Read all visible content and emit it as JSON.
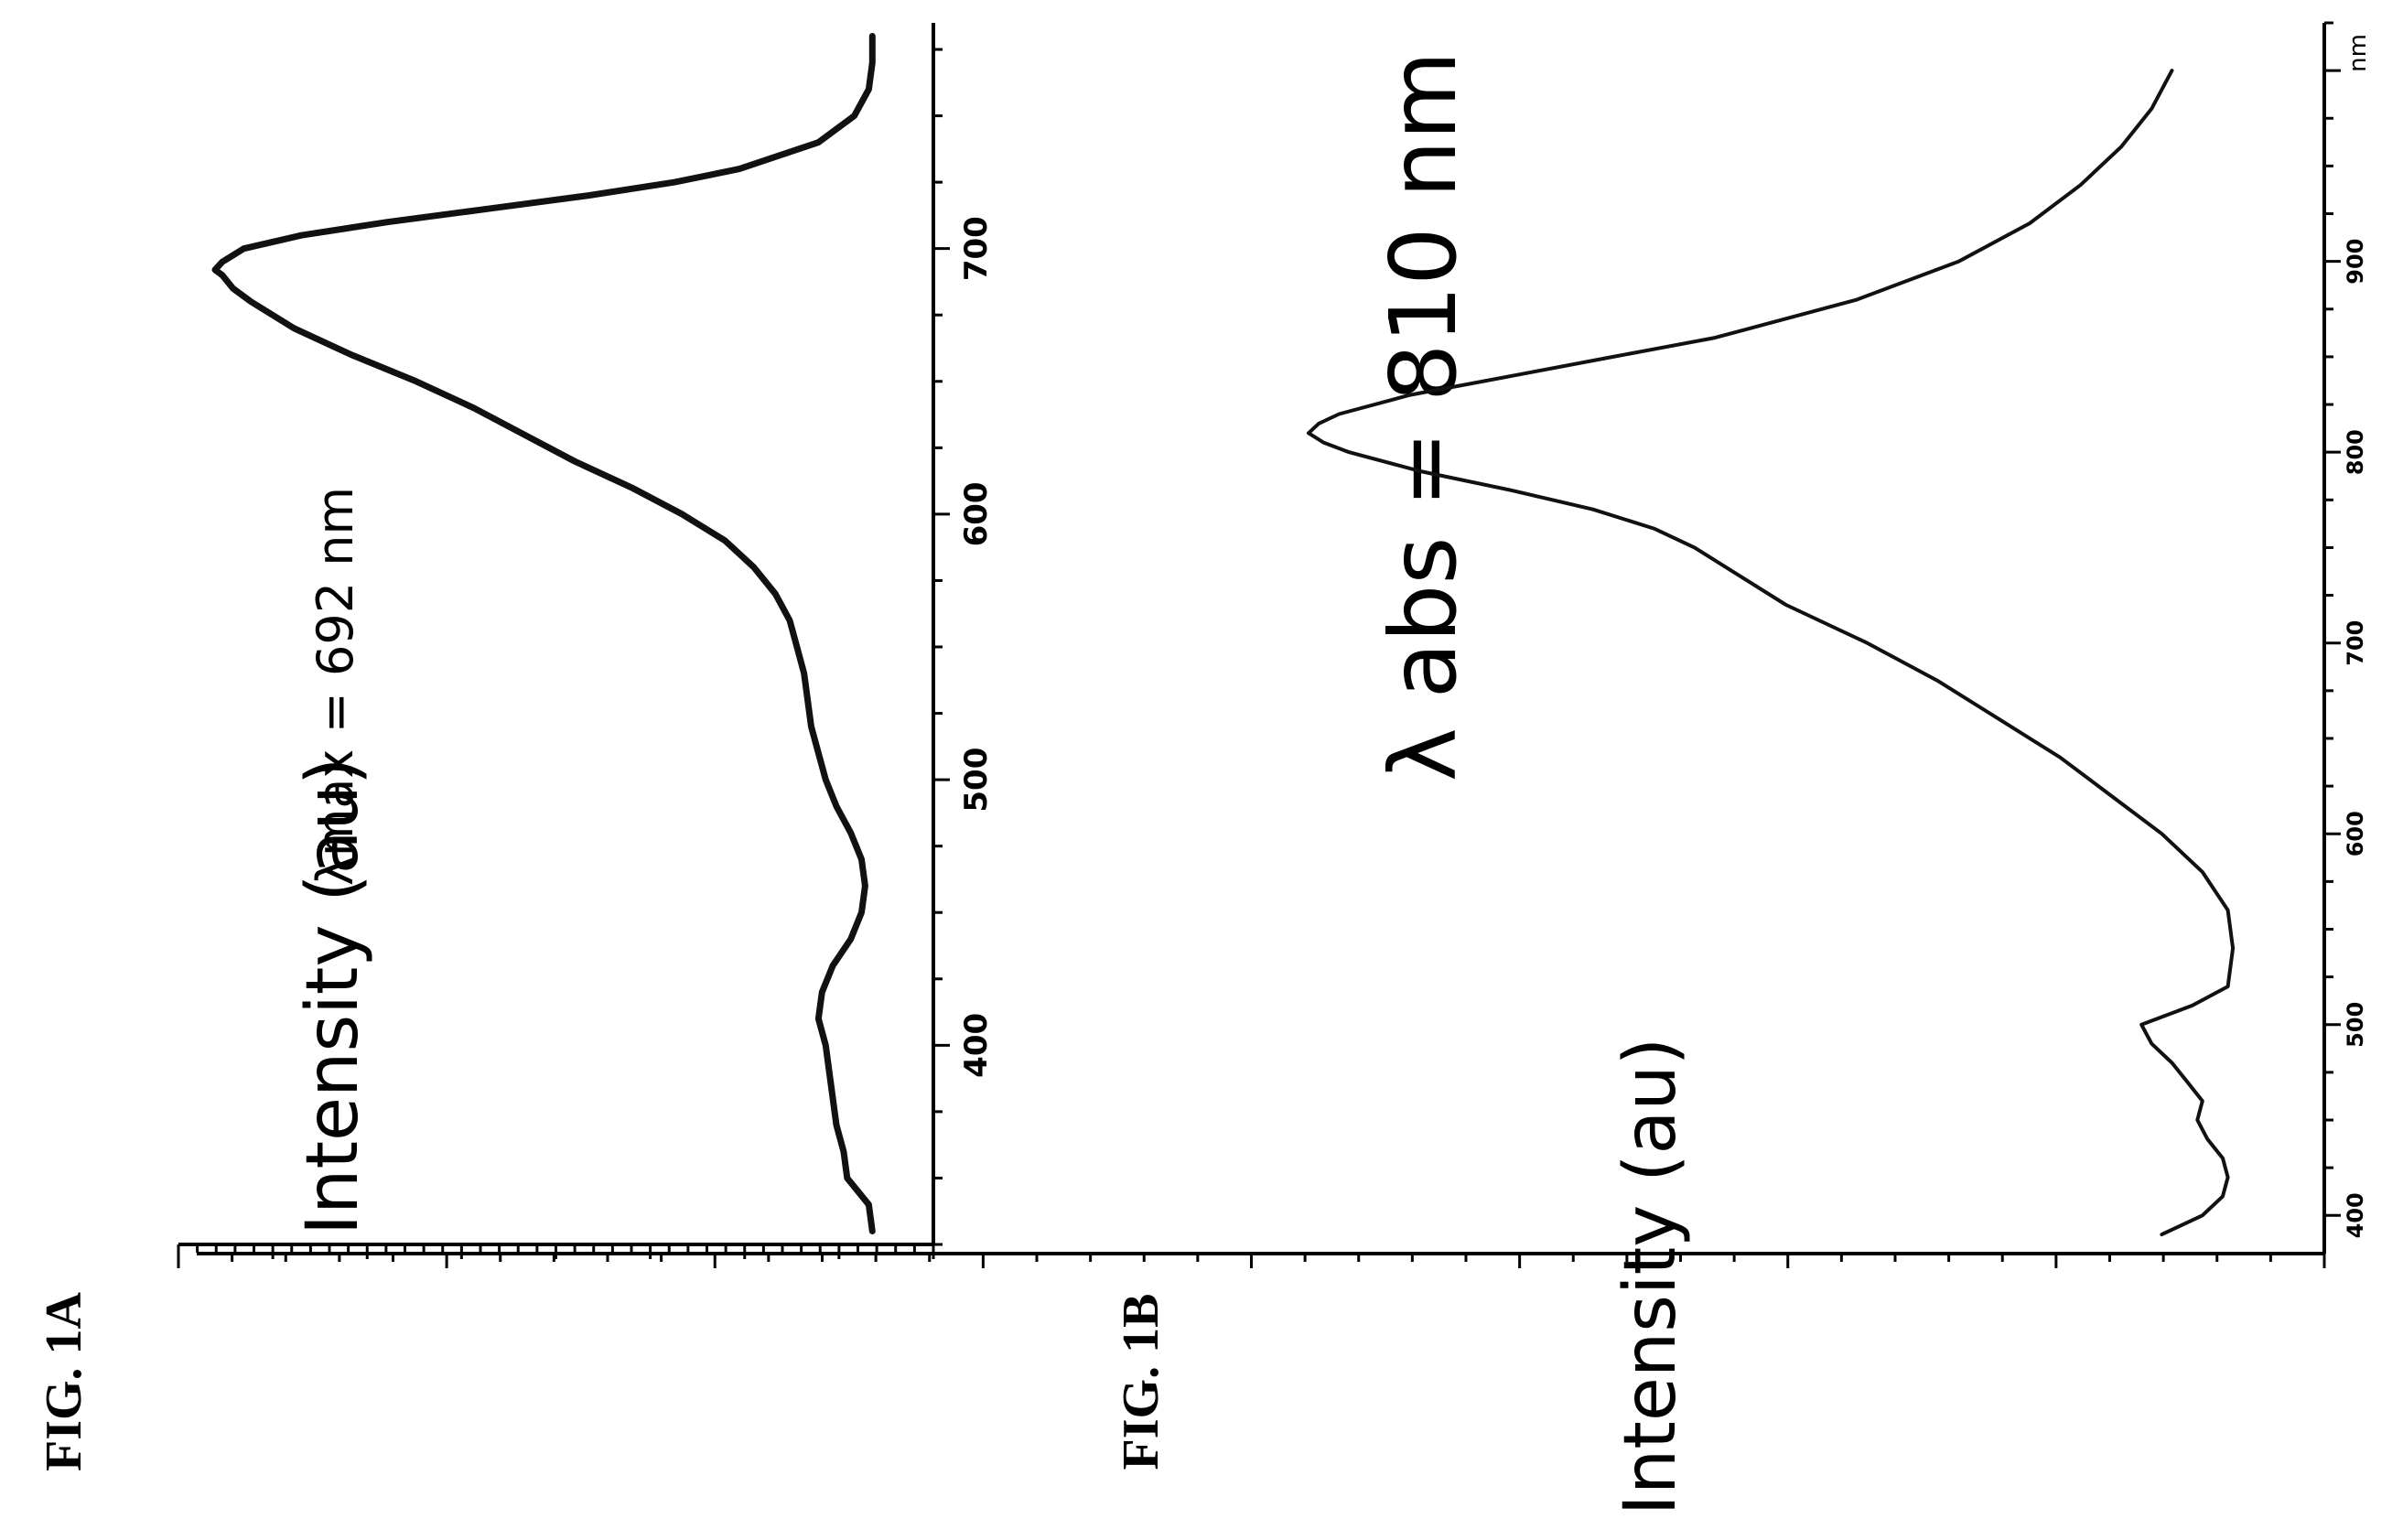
{
  "chart_data": [
    {
      "type": "line",
      "figure_label": "FIG. 1A",
      "ylabel": "Intensity (au)",
      "xlabel": "",
      "annotation": "λmax = 692 nm",
      "xlim": [
        325,
        785
      ],
      "ylim": [
        0,
        1.0
      ],
      "x_ticks": [
        "400",
        "500",
        "600",
        "700"
      ],
      "grid": false,
      "series": [
        {
          "x": [
            330,
            340,
            350,
            360,
            370,
            380,
            390,
            400,
            410,
            420,
            430,
            440,
            450,
            460,
            470,
            480,
            490,
            500,
            510,
            520,
            530,
            540,
            550,
            560,
            570,
            580,
            590,
            600,
            610,
            620,
            630,
            640,
            650,
            660,
            670,
            680,
            685,
            690,
            692,
            695,
            700,
            705,
            710,
            715,
            720,
            725,
            730,
            740,
            750,
            760,
            770,
            780
          ],
          "y": [
            0.085,
            0.09,
            0.12,
            0.125,
            0.135,
            0.14,
            0.145,
            0.15,
            0.16,
            0.155,
            0.14,
            0.115,
            0.1,
            0.095,
            0.1,
            0.115,
            0.135,
            0.15,
            0.16,
            0.17,
            0.175,
            0.18,
            0.19,
            0.2,
            0.22,
            0.25,
            0.29,
            0.35,
            0.42,
            0.5,
            0.57,
            0.64,
            0.72,
            0.81,
            0.89,
            0.95,
            0.975,
            0.99,
            1.0,
            0.99,
            0.96,
            0.88,
            0.76,
            0.62,
            0.48,
            0.36,
            0.27,
            0.16,
            0.11,
            0.09,
            0.085,
            0.085
          ]
        }
      ]
    },
    {
      "type": "line",
      "figure_label": "FIG. 1B",
      "ylabel": "Intensity (au)",
      "xlabel": "",
      "annotation": "λ abs = 810 nm",
      "xlim": [
        380,
        1025
      ],
      "ylim": [
        0,
        1.0
      ],
      "x_ticks": [
        "400",
        "500",
        "600",
        "700",
        "800",
        "900"
      ],
      "x_unit": "nm",
      "grid": false,
      "series": [
        {
          "x": [
            390,
            400,
            410,
            420,
            430,
            440,
            450,
            460,
            470,
            480,
            490,
            500,
            510,
            520,
            540,
            560,
            580,
            600,
            620,
            640,
            660,
            680,
            700,
            720,
            740,
            750,
            760,
            770,
            780,
            790,
            800,
            805,
            810,
            815,
            820,
            830,
            840,
            850,
            860,
            880,
            900,
            920,
            940,
            960,
            980,
            1000
          ],
          "y": [
            0.16,
            0.12,
            0.1,
            0.095,
            0.1,
            0.115,
            0.125,
            0.12,
            0.135,
            0.15,
            0.17,
            0.18,
            0.13,
            0.095,
            0.09,
            0.095,
            0.12,
            0.16,
            0.21,
            0.26,
            0.32,
            0.38,
            0.45,
            0.53,
            0.59,
            0.62,
            0.66,
            0.72,
            0.8,
            0.89,
            0.96,
            0.985,
            1.0,
            0.99,
            0.97,
            0.9,
            0.8,
            0.7,
            0.6,
            0.46,
            0.36,
            0.29,
            0.24,
            0.2,
            0.17,
            0.15
          ]
        }
      ]
    }
  ]
}
